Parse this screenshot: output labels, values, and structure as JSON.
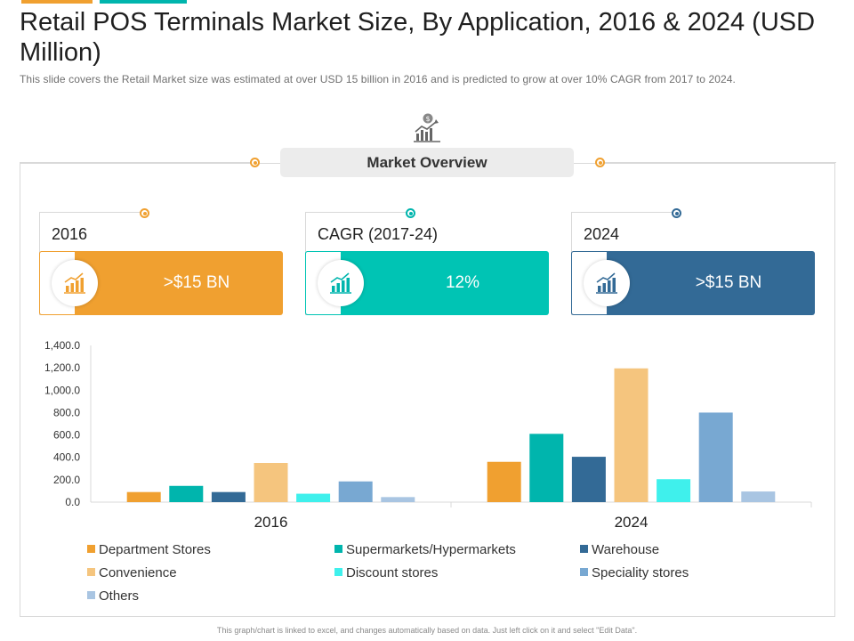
{
  "title": "Retail POS Terminals Market Size, By Application, 2016 & 2024 (USD Million)",
  "subtitle": "This slide covers the Retail Market size was estimated at over  USD 15 billion in 2016 and is predicted to grow at over  10% CAGR from 2017 to 2024.",
  "overview": {
    "label": "Market Overview"
  },
  "cards": [
    {
      "label": "2016",
      "value": ">$15 BN",
      "color": "#f0a030"
    },
    {
      "label": "CAGR (2017-24)",
      "value": "12%",
      "color": "#00c4b4"
    },
    {
      "label": "2024",
      "value": ">$15 BN",
      "color": "#336a96"
    }
  ],
  "footer": "This graph/chart is linked to excel, and changes automatically based on data. Just left click on it and select \"Edit Data\".",
  "chart_data": {
    "type": "bar",
    "categories": [
      "2016",
      "2024"
    ],
    "ylim": [
      0,
      1400
    ],
    "yticks": [
      "0.0",
      "200.0",
      "400.0",
      "600.0",
      "800.0",
      "1,000.0",
      "1,200.0",
      "1,400.0"
    ],
    "grid": false,
    "legend_position": "bottom",
    "series": [
      {
        "name": "Department Stores",
        "values": [
          90,
          360
        ],
        "color": "#f0a030"
      },
      {
        "name": "Supermarkets/Hypermarkets",
        "values": [
          145,
          610
        ],
        "color": "#00b5ad"
      },
      {
        "name": "Warehouse",
        "values": [
          90,
          405
        ],
        "color": "#336a96"
      },
      {
        "name": "Convenience",
        "values": [
          350,
          1195
        ],
        "color": "#f5c57e"
      },
      {
        "name": "Discount stores",
        "values": [
          75,
          205
        ],
        "color": "#3ff0ec"
      },
      {
        "name": "Speciality stores",
        "values": [
          185,
          800
        ],
        "color": "#78a8d2"
      },
      {
        "name": "Others",
        "values": [
          45,
          95
        ],
        "color": "#a9c5e2"
      }
    ]
  }
}
